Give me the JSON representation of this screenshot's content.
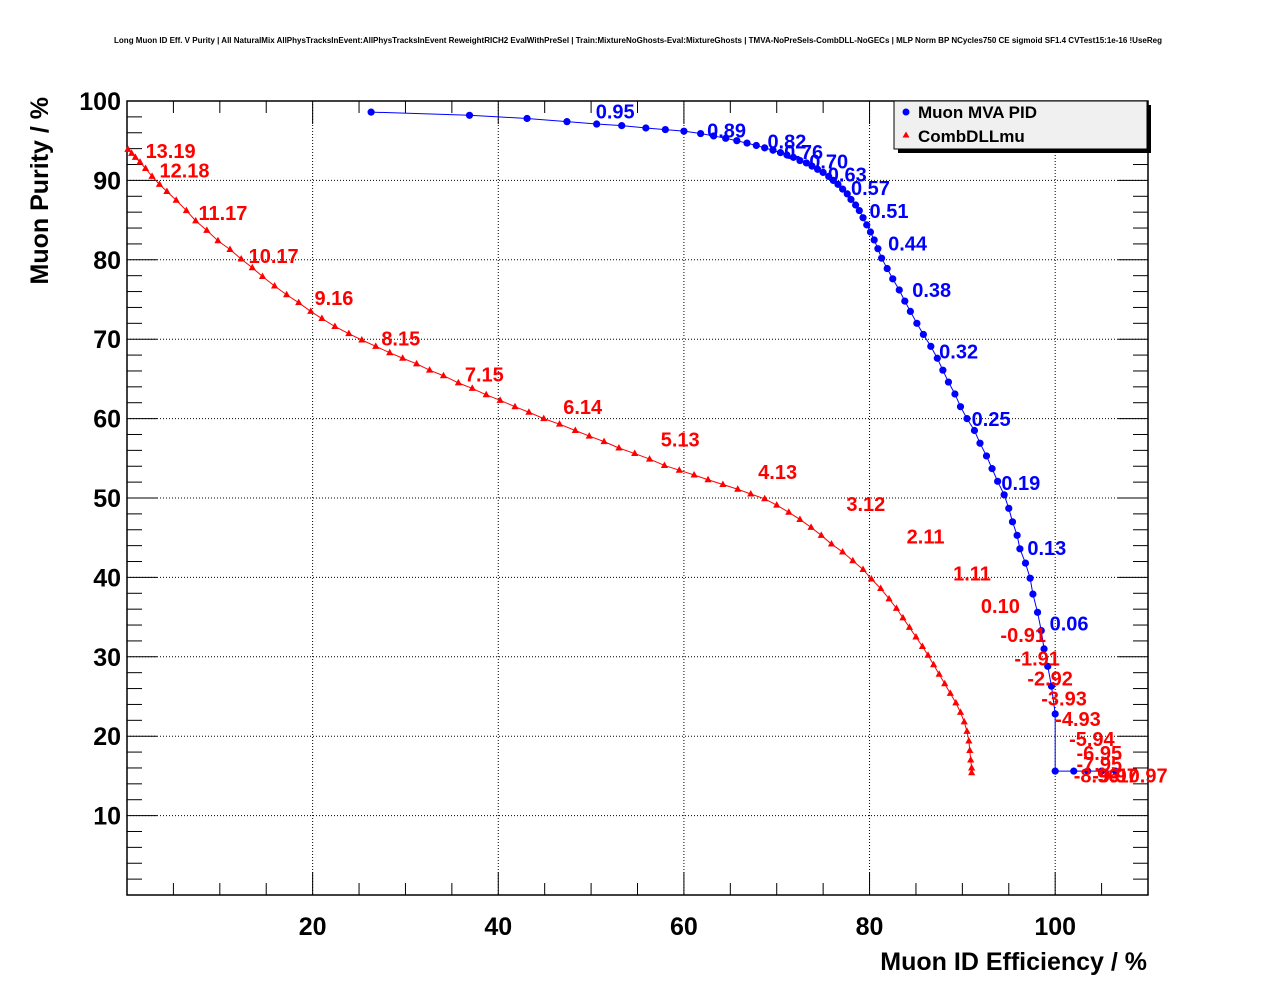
{
  "chart_data": {
    "type": "scatter",
    "title": "Long Muon ID Eff. V Purity | All NaturalMix AllPhysTracksInEvent:AllPhysTracksInEvent ReweightRICH2 EvalWithPreSel | Train:MixtureNoGhosts-Eval:MixtureGhosts | TMVA-NoPreSels-CombDLL-NoGECs | MLP Norm BP NCycles750 CE sigmoid SF1.4 CVTest15:1e-16 !UseReg",
    "xlabel": "Muon ID Efficiency / %",
    "ylabel": "Muon Purity / %",
    "xlim": [
      0,
      110
    ],
    "ylim": [
      0,
      100
    ],
    "xticks": [
      20,
      40,
      60,
      80,
      100
    ],
    "xtick_labels": [
      "20",
      "40",
      "60",
      "80",
      "100"
    ],
    "yticks": [
      10,
      20,
      30,
      40,
      50,
      60,
      70,
      80,
      90,
      100
    ],
    "ytick_labels": [
      "10",
      "20",
      "30",
      "40",
      "50",
      "60",
      "70",
      "80",
      "90",
      "100"
    ],
    "grid": true,
    "legend": {
      "position": "top-right",
      "entries": [
        {
          "label": "Muon MVA PID",
          "marker": "circle",
          "color": "#0000ff"
        },
        {
          "label": "CombDLLmu",
          "marker": "triangle",
          "color": "#ff0000"
        }
      ]
    },
    "series": [
      {
        "name": "Muon MVA PID",
        "color": "#0000ff",
        "marker": "circle",
        "points": [
          [
            26.3,
            98.6
          ],
          [
            36.9,
            98.2
          ],
          [
            43.1,
            97.8
          ],
          [
            47.4,
            97.4
          ],
          [
            50.6,
            97.1
          ],
          [
            53.3,
            96.9
          ],
          [
            55.9,
            96.6
          ],
          [
            58.0,
            96.4
          ],
          [
            60.0,
            96.2
          ],
          [
            61.8,
            95.9
          ],
          [
            63.2,
            95.6
          ],
          [
            64.5,
            95.3
          ],
          [
            65.7,
            95.0
          ],
          [
            66.8,
            94.7
          ],
          [
            67.8,
            94.4
          ],
          [
            68.7,
            94.1
          ],
          [
            69.6,
            93.8
          ],
          [
            70.4,
            93.5
          ],
          [
            71.1,
            93.2
          ],
          [
            71.8,
            92.9
          ],
          [
            72.5,
            92.5
          ],
          [
            73.2,
            92.2
          ],
          [
            73.8,
            91.8
          ],
          [
            74.4,
            91.4
          ],
          [
            75.0,
            91.0
          ],
          [
            75.6,
            90.5
          ],
          [
            76.1,
            90.0
          ],
          [
            76.6,
            89.5
          ],
          [
            77.1,
            88.9
          ],
          [
            77.6,
            88.3
          ],
          [
            78.0,
            87.6
          ],
          [
            78.5,
            86.9
          ],
          [
            78.9,
            86.2
          ],
          [
            79.3,
            85.3
          ],
          [
            79.7,
            84.4
          ],
          [
            80.1,
            83.5
          ],
          [
            80.5,
            82.5
          ],
          [
            80.9,
            81.4
          ],
          [
            81.3,
            80.2
          ],
          [
            81.9,
            78.9
          ],
          [
            82.5,
            77.6
          ],
          [
            83.2,
            76.2
          ],
          [
            83.8,
            74.8
          ],
          [
            84.4,
            73.5
          ],
          [
            85.1,
            72.0
          ],
          [
            85.8,
            70.6
          ],
          [
            86.6,
            69.1
          ],
          [
            87.3,
            67.6
          ],
          [
            87.9,
            66.1
          ],
          [
            88.5,
            64.6
          ],
          [
            89.2,
            63.1
          ],
          [
            89.8,
            61.5
          ],
          [
            90.5,
            60.0
          ],
          [
            91.3,
            58.5
          ],
          [
            91.9,
            56.9
          ],
          [
            92.6,
            55.3
          ],
          [
            93.2,
            53.7
          ],
          [
            93.8,
            52.1
          ],
          [
            94.5,
            50.4
          ],
          [
            95.0,
            48.7
          ],
          [
            95.4,
            47.0
          ],
          [
            95.9,
            45.3
          ],
          [
            96.2,
            43.6
          ],
          [
            96.8,
            41.8
          ],
          [
            97.3,
            39.9
          ],
          [
            97.6,
            37.9
          ],
          [
            98.1,
            35.6
          ],
          [
            98.5,
            33.3
          ],
          [
            98.8,
            31.0
          ],
          [
            99.2,
            28.8
          ],
          [
            99.6,
            26.3
          ],
          [
            100.0,
            22.8
          ],
          [
            100.0,
            15.6
          ],
          [
            102.0,
            15.6
          ],
          [
            103.5,
            15.6
          ],
          [
            105.0,
            15.6
          ],
          [
            106.5,
            15.6
          ]
        ],
        "labels": [
          {
            "text": "0.95",
            "at": [
              50.5,
              98.8
            ]
          },
          {
            "text": "0.89",
            "at": [
              62.5,
              96.4
            ]
          },
          {
            "text": "0.82",
            "at": [
              69.0,
              95.0
            ]
          },
          {
            "text": "0.76",
            "at": [
              70.8,
              93.7
            ]
          },
          {
            "text": "0.70",
            "at": [
              73.5,
              92.5
            ]
          },
          {
            "text": "0.63",
            "at": [
              75.5,
              90.9
            ]
          },
          {
            "text": "0.57",
            "at": [
              78.0,
              89.2
            ]
          },
          {
            "text": "0.51",
            "at": [
              80.0,
              86.3
            ]
          },
          {
            "text": "0.44",
            "at": [
              82.0,
              82.2
            ]
          },
          {
            "text": "0.38",
            "at": [
              84.6,
              76.3
            ]
          },
          {
            "text": "0.32",
            "at": [
              87.5,
              68.6
            ]
          },
          {
            "text": "0.25",
            "at": [
              91.0,
              60.1
            ]
          },
          {
            "text": "0.19",
            "at": [
              94.2,
              52.0
            ]
          },
          {
            "text": "0.13",
            "at": [
              97.0,
              43.8
            ]
          },
          {
            "text": "0.06",
            "at": [
              99.4,
              34.3
            ]
          }
        ]
      },
      {
        "name": "CombDLLmu",
        "color": "#ff0000",
        "marker": "triangle",
        "points": [
          [
            0.1,
            93.9
          ],
          [
            0.5,
            93.4
          ],
          [
            0.9,
            92.9
          ],
          [
            1.4,
            92.3
          ],
          [
            2.0,
            91.5
          ],
          [
            2.7,
            90.5
          ],
          [
            3.5,
            89.5
          ],
          [
            4.3,
            88.6
          ],
          [
            5.3,
            87.5
          ],
          [
            6.4,
            86.2
          ],
          [
            7.4,
            84.9
          ],
          [
            8.6,
            83.7
          ],
          [
            9.8,
            82.4
          ],
          [
            11.1,
            81.3
          ],
          [
            12.3,
            80.1
          ],
          [
            13.5,
            79.0
          ],
          [
            14.6,
            77.9
          ],
          [
            15.9,
            76.7
          ],
          [
            17.2,
            75.6
          ],
          [
            18.5,
            74.6
          ],
          [
            19.8,
            73.5
          ],
          [
            21.0,
            72.6
          ],
          [
            22.4,
            71.6
          ],
          [
            23.9,
            70.7
          ],
          [
            25.3,
            69.9
          ],
          [
            26.8,
            69.1
          ],
          [
            28.3,
            68.3
          ],
          [
            29.7,
            67.6
          ],
          [
            31.2,
            66.9
          ],
          [
            32.6,
            66.1
          ],
          [
            34.1,
            65.4
          ],
          [
            35.7,
            64.5
          ],
          [
            37.2,
            63.8
          ],
          [
            38.7,
            63.0
          ],
          [
            40.2,
            62.3
          ],
          [
            41.8,
            61.5
          ],
          [
            43.3,
            60.8
          ],
          [
            44.9,
            60.0
          ],
          [
            46.6,
            59.3
          ],
          [
            48.3,
            58.5
          ],
          [
            49.8,
            57.8
          ],
          [
            51.4,
            57.1
          ],
          [
            53.0,
            56.3
          ],
          [
            54.7,
            55.6
          ],
          [
            56.3,
            54.9
          ],
          [
            57.9,
            54.1
          ],
          [
            59.5,
            53.5
          ],
          [
            61.1,
            52.9
          ],
          [
            62.6,
            52.3
          ],
          [
            64.2,
            51.7
          ],
          [
            65.8,
            51.1
          ],
          [
            67.2,
            50.5
          ],
          [
            68.7,
            49.9
          ],
          [
            70.0,
            49.1
          ],
          [
            71.3,
            48.2
          ],
          [
            72.5,
            47.3
          ],
          [
            73.7,
            46.3
          ],
          [
            74.8,
            45.3
          ],
          [
            75.9,
            44.2
          ],
          [
            77.1,
            43.2
          ],
          [
            78.2,
            42.1
          ],
          [
            79.3,
            41.0
          ],
          [
            80.2,
            39.8
          ],
          [
            81.2,
            38.6
          ],
          [
            82.1,
            37.3
          ],
          [
            82.9,
            36.1
          ],
          [
            83.6,
            34.9
          ],
          [
            84.3,
            33.7
          ],
          [
            85.0,
            32.5
          ],
          [
            85.7,
            31.3
          ],
          [
            86.3,
            30.2
          ],
          [
            86.9,
            29.0
          ],
          [
            87.5,
            27.8
          ],
          [
            88.1,
            26.6
          ],
          [
            88.7,
            25.4
          ],
          [
            89.3,
            24.2
          ],
          [
            89.8,
            23.0
          ],
          [
            90.2,
            21.8
          ],
          [
            90.5,
            20.6
          ],
          [
            90.7,
            19.4
          ],
          [
            90.8,
            18.2
          ],
          [
            90.9,
            17.0
          ],
          [
            91.0,
            16.0
          ],
          [
            91.0,
            15.4
          ]
        ],
        "labels": [
          {
            "text": "13.19",
            "at": [
              2.0,
              93.8
            ]
          },
          {
            "text": "12.18",
            "at": [
              3.5,
              91.4
            ]
          },
          {
            "text": "11.17",
            "at": [
              7.7,
              86.0
            ]
          },
          {
            "text": "10.17",
            "at": [
              13.1,
              80.6
            ]
          },
          {
            "text": "9.16",
            "at": [
              20.2,
              75.3
            ]
          },
          {
            "text": "8.15",
            "at": [
              27.4,
              70.2
            ]
          },
          {
            "text": "7.15",
            "at": [
              36.4,
              65.7
            ]
          },
          {
            "text": "6.14",
            "at": [
              47.0,
              61.6
            ]
          },
          {
            "text": "5.13",
            "at": [
              57.5,
              57.5
            ]
          },
          {
            "text": "4.13",
            "at": [
              68.0,
              53.4
            ]
          },
          {
            "text": "3.12",
            "at": [
              77.5,
              49.4
            ]
          },
          {
            "text": "2.11",
            "at": [
              84.0,
              45.3
            ]
          },
          {
            "text": "1.11",
            "at": [
              89.0,
              40.6
            ]
          },
          {
            "text": "0.10",
            "at": [
              92.0,
              36.5
            ]
          },
          {
            "text": "-0.91",
            "at": [
              94.1,
              32.9
            ]
          },
          {
            "text": "-1.91",
            "at": [
              95.6,
              29.9
            ]
          },
          {
            "text": "-2.92",
            "at": [
              97.0,
              27.4
            ]
          },
          {
            "text": "-3.93",
            "at": [
              98.5,
              24.9
            ]
          },
          {
            "text": "-4.93",
            "at": [
              100.0,
              22.3
            ]
          },
          {
            "text": "-5.94",
            "at": [
              101.5,
              19.8
            ]
          },
          {
            "text": "-6.95",
            "at": [
              102.3,
              18.0
            ]
          },
          {
            "text": "-7.95",
            "at": [
              102.3,
              16.6
            ]
          },
          {
            "text": "-8.96",
            "at": [
              102.0,
              15.2
            ]
          },
          {
            "text": "-9.97",
            "at": [
              104.0,
              15.2
            ]
          },
          {
            "text": "-10.97",
            "at": [
              106.0,
              15.2
            ]
          }
        ]
      }
    ]
  }
}
